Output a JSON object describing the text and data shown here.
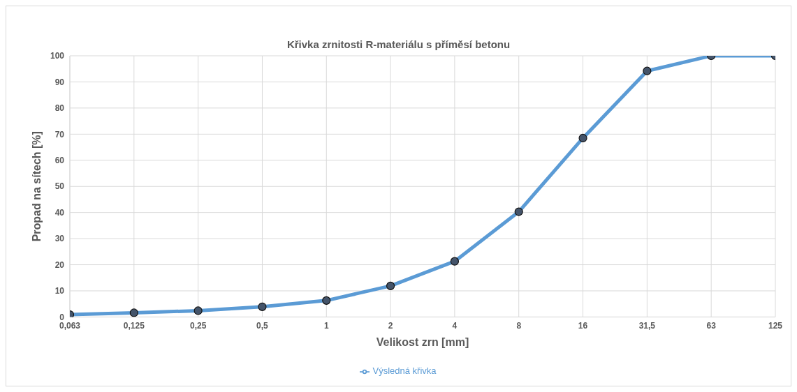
{
  "chart_data": {
    "type": "line",
    "title": "Křivka zrnitosti R-materiálu s příměsí betonu",
    "xlabel": "Velikost zrn [mm]",
    "ylabel": "Propad na sítech [%]",
    "categories": [
      "0,063",
      "0,125",
      "0,25",
      "0,5",
      "1",
      "2",
      "4",
      "8",
      "16",
      "31,5",
      "63",
      "125"
    ],
    "series": [
      {
        "name": "Výsledná křivka",
        "color": "#5b9bd5",
        "values": [
          0.9,
          1.6,
          2.4,
          3.9,
          6.3,
          11.9,
          21.3,
          40.3,
          68.5,
          94.2,
          100,
          100
        ]
      }
    ],
    "ylim": [
      0,
      100
    ],
    "yticks": [
      0,
      10,
      20,
      30,
      40,
      50,
      60,
      70,
      80,
      90,
      100
    ],
    "grid": true,
    "legend": "bottom",
    "marker": "circle",
    "line_style": "solid"
  }
}
